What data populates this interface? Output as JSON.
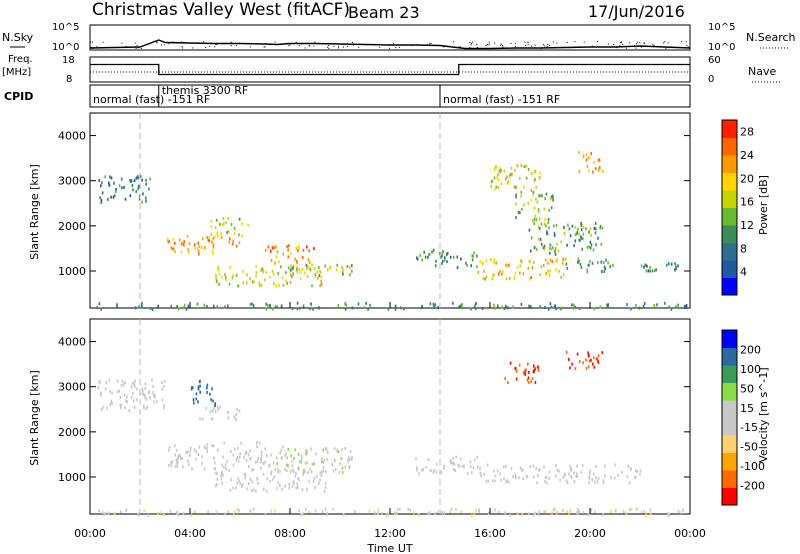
{
  "header": {
    "station": "Christmas Valley West (fitACF)",
    "beam": "Beam 23",
    "date": "17/Jun/2016"
  },
  "noise_panel": {
    "left_label": "N.Sky",
    "left_ticks": [
      "10^5",
      "10^0"
    ],
    "right_ticks": [
      "10^5",
      "10^0"
    ],
    "right_label": "N.Search"
  },
  "freq_panel": {
    "left_label_top": "Freq.",
    "left_label_bottom": "[MHz]",
    "left_ticks": [
      "18",
      "8"
    ],
    "right_ticks": [
      "60",
      "0"
    ],
    "right_label": "Nave"
  },
  "cpid_panel": {
    "label": "CPID",
    "segments": [
      {
        "label": "normal (fast) -151 RF",
        "start_hour": 0
      },
      {
        "label": "themis 3300 RF",
        "start_hour": 2.75
      },
      {
        "label": "normal (fast) -151 RF",
        "start_hour": 14
      }
    ]
  },
  "x_axis": {
    "label": "Time UT",
    "ticks": [
      "00:00",
      "04:00",
      "08:00",
      "12:00",
      "16:00",
      "20:00",
      "00:00"
    ]
  },
  "colors": {
    "power_scale": [
      "#0000ff",
      "#1e5aa0",
      "#2e6e8e",
      "#3a8c5a",
      "#66bb33",
      "#c8d400",
      "#ffd400",
      "#ff9900",
      "#ff6600",
      "#ff1e00"
    ],
    "velocity_scale": [
      "#ff0000",
      "#ff6a00",
      "#ffa500",
      "#ffd070",
      "#c8c8c8",
      "#c8c8c8",
      "#88dd44",
      "#3a9a5a",
      "#2a6aa0",
      "#0000ff"
    ],
    "ground_scatter": "#c8c8c8"
  },
  "chart_data": [
    {
      "type": "line",
      "title": "N.Sky / N.Search",
      "x_unit": "hour UT",
      "x": [
        0,
        1,
        2,
        2.75,
        3,
        4,
        5,
        6,
        7,
        7.5,
        8,
        9,
        10,
        11,
        12,
        13,
        14,
        15,
        16,
        17,
        18,
        19,
        20,
        21,
        22,
        23,
        24
      ],
      "series": [
        {
          "name": "N.Sky",
          "values": [
            0.4,
            0.5,
            0.6,
            2.0,
            1.5,
            1.4,
            1.3,
            1.3,
            1.2,
            1.1,
            1.3,
            1.3,
            1.2,
            1.1,
            1.0,
            1.0,
            0.9,
            0.3,
            0.3,
            0.4,
            0.4,
            0.5,
            0.6,
            0.6,
            0.8,
            0.6,
            0.4
          ]
        }
      ],
      "ylim": [
        0,
        5
      ],
      "ytick_labels": [
        "10^0",
        "10^5"
      ]
    },
    {
      "type": "line",
      "title": "Freq. / Nave",
      "x_unit": "hour UT",
      "x": [
        0,
        2.75,
        7.5,
        14.75,
        24
      ],
      "series": [
        {
          "name": "Freq. [MHz]",
          "values": [
            15,
            11,
            11,
            15,
            15
          ]
        },
        {
          "name": "Nave",
          "values": [
            23,
            23,
            23,
            23,
            23
          ]
        }
      ],
      "ylim": [
        8,
        18
      ]
    },
    {
      "type": "heatmap",
      "title": "Power [dB]",
      "xlabel": "Time UT",
      "ylabel": "Slant Range [km]",
      "x_range_hours": [
        0,
        24
      ],
      "ylim": [
        180,
        4500
      ],
      "yticks": [
        1000,
        2000,
        3000,
        4000
      ],
      "colorbar": {
        "label": "Power [dB]",
        "ticks": [
          4,
          8,
          12,
          16,
          20,
          24,
          28
        ],
        "range": [
          0,
          30
        ]
      },
      "regions": [
        {
          "t0": 0.3,
          "t1": 2.5,
          "r0": 2550,
          "r1": 3150,
          "level": 8
        },
        {
          "t0": 3.0,
          "t1": 6.0,
          "r0": 1400,
          "r1": 1800,
          "level": 22
        },
        {
          "t0": 4.8,
          "t1": 6.3,
          "r0": 1800,
          "r1": 2200,
          "level": 16
        },
        {
          "t0": 5.0,
          "t1": 9.5,
          "r0": 700,
          "r1": 1150,
          "level": 18
        },
        {
          "t0": 7.0,
          "t1": 9.0,
          "r0": 1200,
          "r1": 1600,
          "level": 24
        },
        {
          "t0": 8.0,
          "t1": 10.5,
          "r0": 900,
          "r1": 1200,
          "level": 14
        },
        {
          "t0": 13.0,
          "t1": 15.5,
          "r0": 1100,
          "r1": 1500,
          "level": 10
        },
        {
          "t0": 15.5,
          "t1": 19.0,
          "r0": 850,
          "r1": 1300,
          "level": 20
        },
        {
          "t0": 17.5,
          "t1": 20.5,
          "r0": 1400,
          "r1": 2100,
          "level": 12
        },
        {
          "t0": 17.0,
          "t1": 18.5,
          "r0": 2100,
          "r1": 2800,
          "level": 14
        },
        {
          "t0": 19.0,
          "t1": 21.0,
          "r0": 1000,
          "r1": 1300,
          "level": 10
        },
        {
          "t0": 16.0,
          "t1": 18.0,
          "r0": 2800,
          "r1": 3400,
          "level": 18
        },
        {
          "t0": 19.5,
          "t1": 20.5,
          "r0": 3200,
          "r1": 3700,
          "level": 22
        },
        {
          "t0": 22.0,
          "t1": 23.5,
          "r0": 1000,
          "r1": 1200,
          "level": 10
        },
        {
          "t0": 0.2,
          "t1": 24,
          "r0": 180,
          "r1": 320,
          "level": 10
        }
      ]
    },
    {
      "type": "heatmap",
      "title": "Velocity [m s^-1]",
      "xlabel": "Time UT",
      "ylabel": "Slant Range [km]",
      "x_range_hours": [
        0,
        24
      ],
      "ylim": [
        180,
        4500
      ],
      "yticks": [
        1000,
        2000,
        3000,
        4000
      ],
      "colorbar": {
        "label": "Velocity [m s^-1]",
        "ticks": [
          -200,
          -100,
          -50,
          -15,
          15,
          50,
          100,
          200
        ],
        "range": [
          -250,
          250
        ]
      },
      "regions": [
        {
          "t0": 0.3,
          "t1": 3.0,
          "r0": 2500,
          "r1": 3200,
          "vel": 0
        },
        {
          "t0": 3.0,
          "t1": 7.0,
          "r0": 1200,
          "r1": 1800,
          "vel": 0
        },
        {
          "t0": 4.3,
          "t1": 6.0,
          "r0": 2300,
          "r1": 2600,
          "vel": 0
        },
        {
          "t0": 5.0,
          "t1": 9.5,
          "r0": 700,
          "r1": 1200,
          "vel": 0
        },
        {
          "t0": 7.0,
          "t1": 10.5,
          "r0": 1100,
          "r1": 1700,
          "vel": 40
        },
        {
          "t0": 4.0,
          "t1": 5.0,
          "r0": 2600,
          "r1": 3200,
          "vel": 180
        },
        {
          "t0": 13.0,
          "t1": 15.5,
          "r0": 1100,
          "r1": 1500,
          "vel": 0
        },
        {
          "t0": 15.5,
          "t1": 22.0,
          "r0": 900,
          "r1": 1300,
          "vel": 0
        },
        {
          "t0": 16.5,
          "t1": 18.0,
          "r0": 3100,
          "r1": 3600,
          "vel": -200
        },
        {
          "t0": 19.0,
          "t1": 20.5,
          "r0": 3400,
          "r1": 3800,
          "vel": -200
        },
        {
          "t0": 0.2,
          "t1": 24,
          "r0": 180,
          "r1": 320,
          "vel": -40
        }
      ]
    }
  ]
}
